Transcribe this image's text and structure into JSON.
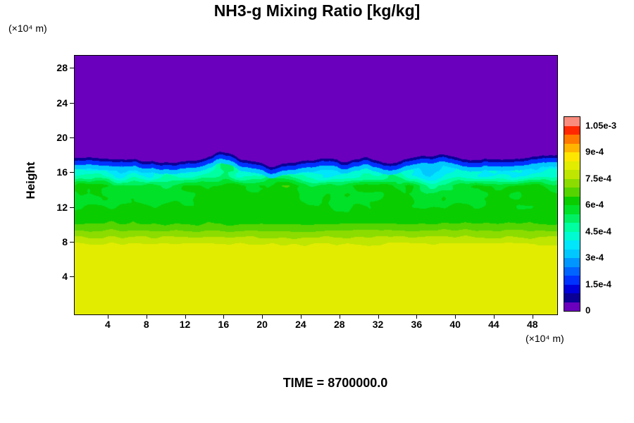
{
  "chart_data": {
    "type": "heatmap",
    "title": "NH3-g Mixing Ratio [kg/kg]",
    "time_label": "TIME = 8700000.0",
    "x_axis": {
      "unit": "(×10⁴ m)",
      "ticks": [
        4,
        8,
        12,
        16,
        20,
        24,
        28,
        32,
        36,
        40,
        44,
        48
      ],
      "range": [
        0.5,
        50.5
      ]
    },
    "y_axis": {
      "label": "Height",
      "unit": "(×10⁴ m)",
      "ticks": [
        4,
        8,
        12,
        16,
        20,
        24,
        28
      ],
      "range": [
        -0.3,
        29.5
      ]
    },
    "colorbar": {
      "labels": [
        "0",
        "1.5e-4",
        "3e-4",
        "4.5e-4",
        "6e-4",
        "7.5e-4",
        "9e-4",
        "1.05e-3"
      ],
      "label_step": 0.00015,
      "level_step_e4": 0.5,
      "colors": [
        "#6A00BE",
        "#0A0096",
        "#0000DC",
        "#0032FF",
        "#0064FF",
        "#0096FF",
        "#00C8FF",
        "#00E6FA",
        "#00FAD2",
        "#00FFA0",
        "#00F064",
        "#00E128",
        "#0ACD00",
        "#55D400",
        "#8CDC00",
        "#BEE600",
        "#E1EC00",
        "#FFE600",
        "#FFB400",
        "#FF7800",
        "#FF2800",
        "#FA8C7D"
      ]
    },
    "field": {
      "units": "kg/kg",
      "summary": "Stratified NH3-g mixing ratio: about 8.2e-4 (yellow) near the surface, decreasing stepwise with height through green (~6e-4) to a cyan layer (~3.5e-4), capped by a thin dark-blue (~1e-4) jagged entrainment interface near h of 17.5e4 m, with zero (purple) above.",
      "profile_h": [
        0,
        7.5,
        8.5,
        9.3,
        10.2,
        11,
        14.5,
        15.5,
        16.8,
        29.5
      ],
      "profile_v_e4": [
        8.25,
        8.2,
        7.55,
        7.0,
        6.45,
        6.2,
        5.85,
        4.4,
        3.6,
        3.55
      ],
      "boundary_mean": 17.55,
      "boundary_jitter": [
        [
          0.18,
          0.75
        ],
        [
          1.3,
          0.15
        ]
      ],
      "boundary_bumps": [
        [
          16.2,
          0.85,
          1.7
        ],
        [
          20.8,
          -0.75,
          1.2
        ],
        [
          28.4,
          -0.5,
          1.0
        ],
        [
          33.2,
          -0.7,
          2.0
        ]
      ],
      "plume": [
        16.3,
        16.9,
        2.2,
        1.5,
        0.95
      ],
      "band_noise": [
        15.3,
        2.4,
        1.35
      ],
      "fine_noise_amp": 0.14,
      "caps": [
        [
          0.3,
          0.75
        ],
        [
          0.8,
          1.8
        ],
        [
          1.3,
          3.1
        ]
      ],
      "seed": 7
    }
  }
}
